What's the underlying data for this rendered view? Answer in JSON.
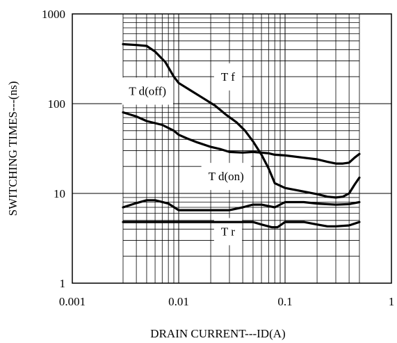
{
  "chart_data": {
    "type": "line",
    "xlabel": "DRAIN  CURRENT---ID(A)",
    "ylabel": "SWITCHING   TIMES---(ns)",
    "xscale": "log",
    "yscale": "log",
    "xlim": [
      0.001,
      1
    ],
    "ylim": [
      1,
      1000
    ],
    "x_ticks": [
      0.001,
      0.01,
      0.1,
      1
    ],
    "x_tick_labels": [
      "0.001",
      "0.01",
      "0.1",
      "1"
    ],
    "y_ticks": [
      1,
      10,
      100,
      1000
    ],
    "y_tick_labels": [
      "1",
      "10",
      "100",
      "1000"
    ],
    "grid": true,
    "grid_x_extent": [
      0.003,
      0.5
    ],
    "series": [
      {
        "name": "T f",
        "x": [
          0.003,
          0.004,
          0.005,
          0.006,
          0.0075,
          0.009,
          0.01,
          0.013,
          0.017,
          0.022,
          0.028,
          0.035,
          0.042,
          0.05,
          0.06,
          0.07,
          0.08,
          0.1,
          0.15,
          0.2,
          0.25,
          0.3,
          0.35,
          0.4,
          0.45,
          0.5
        ],
        "y": [
          460,
          450,
          440,
          380,
          290,
          200,
          170,
          140,
          115,
          95,
          75,
          62,
          50,
          38,
          27,
          19,
          13,
          11.5,
          10.5,
          9.8,
          9.2,
          9,
          9.2,
          10,
          12.5,
          15
        ]
      },
      {
        "name": "T d(off)",
        "x": [
          0.003,
          0.004,
          0.005,
          0.007,
          0.009,
          0.01,
          0.012,
          0.015,
          0.02,
          0.025,
          0.03,
          0.04,
          0.05,
          0.07,
          0.08,
          0.1,
          0.15,
          0.2,
          0.25,
          0.3,
          0.35,
          0.4,
          0.45,
          0.5
        ],
        "y": [
          80,
          72,
          64,
          58,
          50,
          45,
          41,
          37,
          33,
          31,
          29,
          28.5,
          29,
          28,
          27,
          26.5,
          25,
          24,
          22.5,
          21.5,
          21.5,
          22,
          25,
          27.5
        ]
      },
      {
        "name": "T d(on)",
        "x": [
          0.003,
          0.004,
          0.005,
          0.006,
          0.008,
          0.01,
          0.015,
          0.02,
          0.03,
          0.04,
          0.05,
          0.06,
          0.08,
          0.1,
          0.15,
          0.2,
          0.3,
          0.4,
          0.5
        ],
        "y": [
          7,
          7.8,
          8.4,
          8.4,
          7.7,
          6.5,
          6.5,
          6.5,
          6.5,
          7,
          7.5,
          7.5,
          7,
          8,
          8,
          7.7,
          7.5,
          7.6,
          8
        ]
      },
      {
        "name": "T r",
        "x": [
          0.003,
          0.01,
          0.02,
          0.03,
          0.04,
          0.05,
          0.06,
          0.075,
          0.085,
          0.1,
          0.15,
          0.2,
          0.25,
          0.3,
          0.4,
          0.5
        ],
        "y": [
          4.8,
          4.8,
          4.8,
          4.8,
          4.8,
          4.8,
          4.5,
          4.2,
          4.2,
          4.8,
          4.8,
          4.5,
          4.3,
          4.3,
          4.4,
          4.8
        ]
      }
    ],
    "annotations": [
      {
        "text": "T f",
        "at": [
          0.025,
          180
        ]
      },
      {
        "text": "T d(off)",
        "at": [
          0.0034,
          125
        ]
      },
      {
        "text": "T d(on)",
        "at": [
          0.019,
          14
        ]
      },
      {
        "text": "T r",
        "at": [
          0.025,
          3.4
        ]
      }
    ]
  }
}
